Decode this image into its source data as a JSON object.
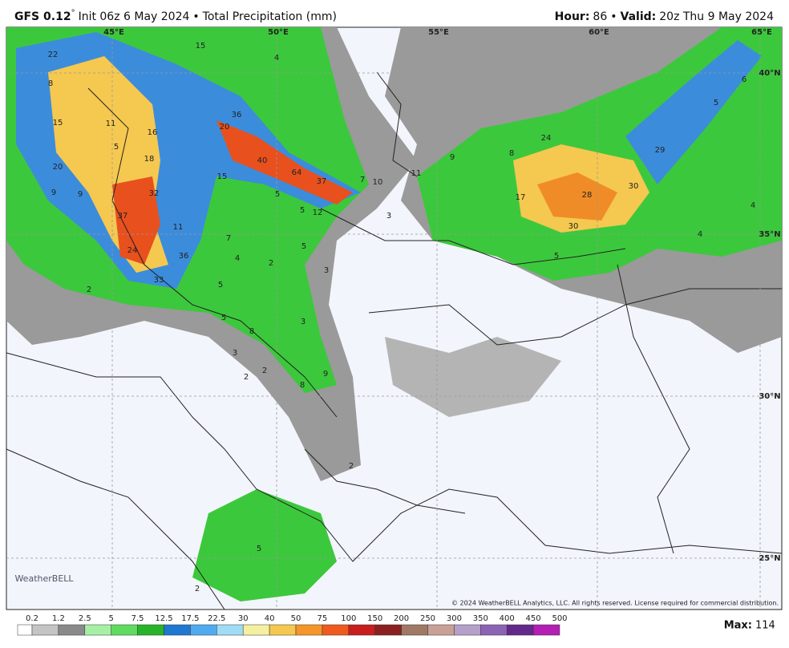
{
  "header": {
    "model": "GFS 0.12",
    "degree": "°",
    "init": "Init 06z 6 May 2024",
    "separator": "•",
    "product": "Total Precipitation (mm)",
    "hour_label": "Hour:",
    "hour": "86",
    "valid_label": "Valid:",
    "valid": "20z Thu 9 May 2024"
  },
  "map": {
    "longitudes": [
      "45°E",
      "50°E",
      "55°E",
      "60°E",
      "65°E"
    ],
    "latitudes": [
      "40°N",
      "35°N",
      "30°N",
      "25°N"
    ],
    "labels": [
      "22",
      "8",
      "15",
      "4",
      "5",
      "6",
      "15",
      "11",
      "16",
      "36",
      "20",
      "5",
      "18",
      "20",
      "40",
      "15",
      "64",
      "37",
      "7",
      "10",
      "11",
      "9",
      "8",
      "24",
      "29",
      "9",
      "9",
      "32",
      "5",
      "17",
      "28",
      "30",
      "37",
      "5",
      "12",
      "3",
      "4",
      "11",
      "30",
      "7",
      "4",
      "24",
      "36",
      "5",
      "4",
      "2",
      "5",
      "33",
      "3",
      "2",
      "5",
      "5",
      "3",
      "8",
      "3",
      "2",
      "2",
      "9",
      "8",
      "2",
      "5",
      "2"
    ],
    "logo": "WeatherBELL",
    "copyright": "© 2024 WeatherBELL Analytics, LLC. All rights reserved. License required for commercial distribution."
  },
  "legend": {
    "ticks": [
      0.2,
      1.2,
      2.5,
      5,
      7.5,
      12.5,
      17.5,
      22.5,
      30,
      40,
      50,
      75,
      100,
      150,
      200,
      250,
      300,
      350,
      400,
      450,
      500
    ],
    "colors": [
      "#ffffff",
      "#c4c4c4",
      "#8a8a8a",
      "#a6f0a6",
      "#5fdc5f",
      "#28b428",
      "#1e78d2",
      "#50aaf0",
      "#a0dcf5",
      "#f5f0a0",
      "#f5c850",
      "#f59628",
      "#f05a1e",
      "#c81e1e",
      "#8c2020",
      "#a07864",
      "#c8a096",
      "#b4a0c8",
      "#8c64b4",
      "#64288c",
      "#b41eb4"
    ],
    "max_label": "Max:",
    "max": 114
  }
}
